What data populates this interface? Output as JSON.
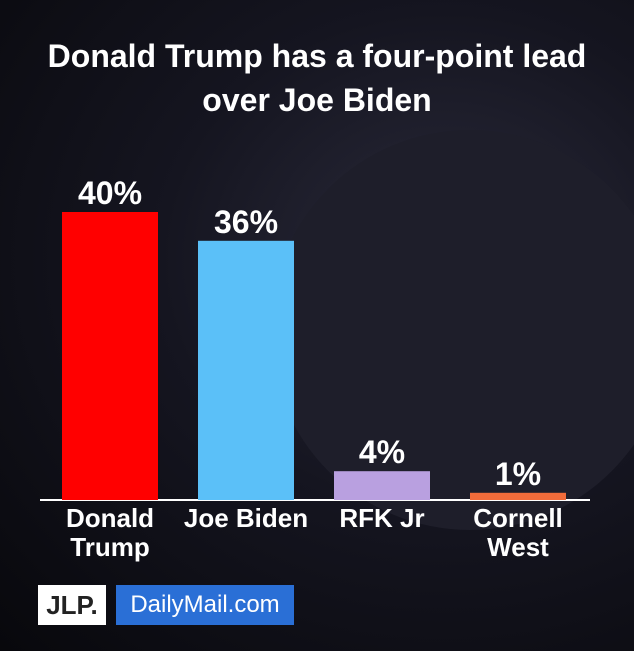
{
  "chart_data": {
    "type": "bar",
    "title": "Donald Trump has a four-point lead over Joe Biden",
    "categories": [
      "Donald Trump",
      "Joe Biden",
      "RFK Jr",
      "Cornell West"
    ],
    "values": [
      40,
      36,
      4,
      1
    ],
    "value_labels": [
      "40%",
      "36%",
      "4%",
      "1%"
    ],
    "colors": [
      "#ff0000",
      "#5bc0f8",
      "#b9a0e0",
      "#f26c3a"
    ],
    "ylim": [
      0,
      50
    ]
  },
  "logos": [
    "JLP.",
    "DailyMail.com"
  ]
}
